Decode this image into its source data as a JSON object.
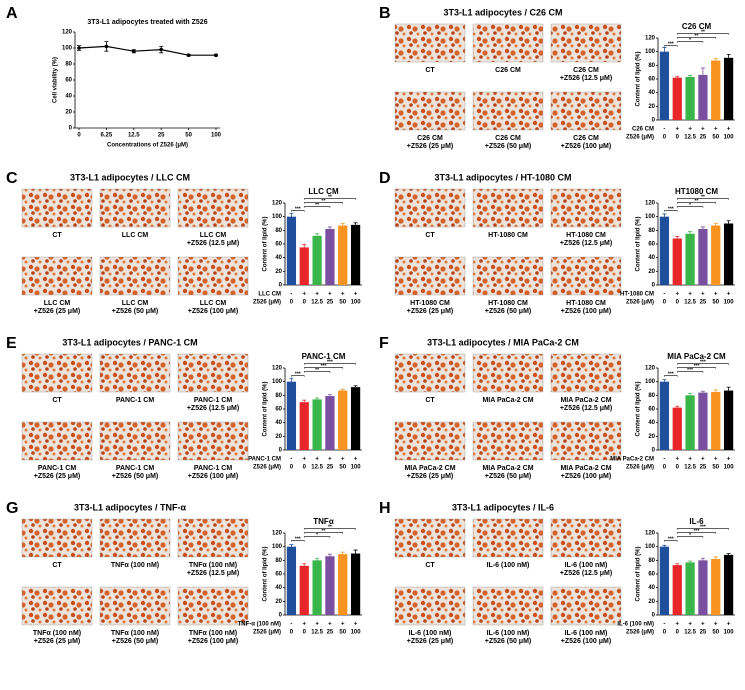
{
  "chart_data": [
    {
      "type": "line",
      "panel": "A",
      "title": "3T3-L1 adipocytes treated with Z526",
      "xlabel": "Concentrations of Z526 (μM)",
      "ylabel": "Cell viability (%)",
      "categories": [
        "0",
        "6.25",
        "12.5",
        "25",
        "50",
        "100"
      ],
      "values": [
        100,
        102,
        96,
        98,
        91,
        91
      ],
      "errors": [
        3,
        6,
        2,
        4,
        1,
        1
      ],
      "color": "#000000",
      "ylim": [
        0,
        120
      ],
      "yticks": [
        0,
        20,
        40,
        60,
        80,
        100,
        120
      ]
    },
    {
      "type": "bar",
      "panel": "B",
      "heading": "3T3-L1 adipocytes / C26 CM",
      "images": [
        [
          "CT"
        ],
        [
          "C26 CM"
        ],
        [
          "C26 CM",
          "+Z526 (12.5 μM)"
        ],
        [
          "C26 CM",
          "+Z526 (25 μM)"
        ],
        [
          "C26 CM",
          "+Z526 (50 μM)"
        ],
        [
          "C26 CM",
          "+Z526 (100 μM)"
        ]
      ],
      "title": "C26 CM",
      "ylabel": "Content of lipid (%)",
      "conditions": [
        {
          "label": "C26 CM",
          "values": [
            "-",
            "+",
            "+",
            "+",
            "+",
            "+"
          ]
        },
        {
          "label": "Z526 (μM)",
          "values": [
            "0",
            "0",
            "12.5",
            "25",
            "50",
            "100"
          ]
        }
      ],
      "values": [
        100,
        62,
        63,
        66,
        87,
        91
      ],
      "errors": [
        6,
        2,
        2,
        10,
        3,
        5
      ],
      "colors": [
        "#1f4e9c",
        "#e8262a",
        "#3ab54a",
        "#7b4fa0",
        "#f7931e",
        "#000000"
      ],
      "significance": [
        "***",
        "*",
        "**",
        "**"
      ],
      "ylim": [
        0,
        120
      ],
      "yticks": [
        0,
        20,
        40,
        60,
        80,
        100,
        120
      ]
    },
    {
      "type": "bar",
      "panel": "C",
      "heading": "3T3-L1 adipocytes / LLC CM",
      "images": [
        [
          "CT"
        ],
        [
          "LLC CM"
        ],
        [
          "LLC CM",
          "+Z526 (12.5 μM)"
        ],
        [
          "LLC CM",
          "+Z526 (25 μM)"
        ],
        [
          "LLC CM",
          "+Z526 (50 μM)"
        ],
        [
          "LLC CM",
          "+Z526 (100 μM)"
        ]
      ],
      "title": "LLC CM",
      "ylabel": "Content of lipid (%)",
      "conditions": [
        {
          "label": "LLC CM",
          "values": [
            "-",
            "+",
            "+",
            "+",
            "+",
            "+"
          ]
        },
        {
          "label": "Z526 (μM)",
          "values": [
            "0",
            "0",
            "12.5",
            "25",
            "50",
            "100"
          ]
        }
      ],
      "values": [
        100,
        55,
        72,
        82,
        87,
        88
      ],
      "errors": [
        5,
        4,
        3,
        3,
        3,
        3
      ],
      "colors": [
        "#1f4e9c",
        "#e8262a",
        "#3ab54a",
        "#7b4fa0",
        "#f7931e",
        "#000000"
      ],
      "significance": [
        "***",
        "**",
        "**",
        "**"
      ],
      "ylim": [
        0,
        120
      ],
      "yticks": [
        0,
        20,
        40,
        60,
        80,
        100,
        120
      ]
    },
    {
      "type": "bar",
      "panel": "D",
      "heading": "3T3-L1 adipocytes / HT-1080 CM",
      "images": [
        [
          "CT"
        ],
        [
          "HT-1080 CM"
        ],
        [
          "HT-1080 CM",
          "+Z526 (12.5 μM)"
        ],
        [
          "HT-1080 CM",
          "+Z526 (25 μM)"
        ],
        [
          "HT-1080 CM",
          "+Z526 (50 μM)"
        ],
        [
          "HT-1080 CM",
          "+Z526 (100 μM)"
        ]
      ],
      "title": "HT1080 CM",
      "ylabel": "Content of lipid (%)",
      "conditions": [
        {
          "label": "HT-1080 CM",
          "values": [
            "-",
            "+",
            "+",
            "+",
            "+",
            "+"
          ]
        },
        {
          "label": "Z526 (μM)",
          "values": [
            "0",
            "0",
            "12.5",
            "25",
            "50",
            "100"
          ]
        }
      ],
      "values": [
        100,
        68,
        75,
        82,
        87,
        90
      ],
      "errors": [
        4,
        3,
        3,
        3,
        3,
        4
      ],
      "colors": [
        "#1f4e9c",
        "#e8262a",
        "#3ab54a",
        "#7b4fa0",
        "#f7931e",
        "#000000"
      ],
      "significance": [
        "***",
        "*",
        "**",
        "**"
      ],
      "ylim": [
        0,
        120
      ],
      "yticks": [
        0,
        20,
        40,
        60,
        80,
        100,
        120
      ]
    },
    {
      "type": "bar",
      "panel": "E",
      "heading": "3T3-L1 adipocytes / PANC-1 CM",
      "images": [
        [
          "CT"
        ],
        [
          "PANC-1 CM"
        ],
        [
          "PANC-1 CM",
          "+Z526 (12.5 μM)"
        ],
        [
          "PANC-1 CM",
          "+Z526 (25 μM)"
        ],
        [
          "PANC-1 CM",
          "+Z526 (50 μM)"
        ],
        [
          "PANC-1 CM",
          "+Z526 (100 μM)"
        ]
      ],
      "title": "PANC-1 CM",
      "ylabel": "Content of lipid (%)",
      "conditions": [
        {
          "label": "PANC-1 CM",
          "values": [
            "-",
            "+",
            "+",
            "+",
            "+",
            "+"
          ]
        },
        {
          "label": "Z526 (μM)",
          "values": [
            "0",
            "0",
            "12.5",
            "25",
            "50",
            "100"
          ]
        }
      ],
      "values": [
        100,
        70,
        74,
        79,
        87,
        92
      ],
      "errors": [
        5,
        3,
        2,
        2,
        2,
        2
      ],
      "colors": [
        "#1f4e9c",
        "#e8262a",
        "#3ab54a",
        "#7b4fa0",
        "#f7931e",
        "#000000"
      ],
      "significance": [
        "***",
        "**",
        "***",
        "***"
      ],
      "ylim": [
        0,
        120
      ],
      "yticks": [
        0,
        20,
        40,
        60,
        80,
        100,
        120
      ]
    },
    {
      "type": "bar",
      "panel": "F",
      "heading": "3T3-L1 adipocytes / MIA PaCa-2 CM",
      "images": [
        [
          "CT"
        ],
        [
          "MIA PaCa-2 CM"
        ],
        [
          "MIA PaCa-2 CM",
          "+Z526 (12.5 μM)"
        ],
        [
          "MIA PaCa-2 CM",
          "+Z526 (25 μM)"
        ],
        [
          "MIA PaCa-2 CM",
          "+Z526 (50 μM)"
        ],
        [
          "MIA PaCa-2 CM",
          "+Z526 (100 μM)"
        ]
      ],
      "title": "MIA PaCa-2 CM",
      "ylabel": "Content of lipid (%)",
      "conditions": [
        {
          "label": "MIA PaCa-2 CM",
          "values": [
            "-",
            "+",
            "+",
            "+",
            "+",
            "+"
          ]
        },
        {
          "label": "Z526 (μM)",
          "values": [
            "0",
            "0",
            "12.5",
            "25",
            "50",
            "100"
          ]
        }
      ],
      "values": [
        100,
        62,
        80,
        84,
        85,
        87
      ],
      "errors": [
        3,
        2,
        3,
        2,
        3,
        5
      ],
      "colors": [
        "#1f4e9c",
        "#e8262a",
        "#3ab54a",
        "#7b4fa0",
        "#f7931e",
        "#000000"
      ],
      "significance": [
        "***",
        "***",
        "***",
        "***"
      ],
      "ylim": [
        0,
        120
      ],
      "yticks": [
        0,
        20,
        40,
        60,
        80,
        100,
        120
      ]
    },
    {
      "type": "bar",
      "panel": "G",
      "heading": "3T3-L1 adipocytes / TNF-α",
      "images": [
        [
          "CT"
        ],
        [
          "TNFα (100 nM)"
        ],
        [
          "TNFα (100 nM)",
          "+Z526 (12.5 μM)"
        ],
        [
          "TNFα (100 nM)",
          "+Z526 (25 μM)"
        ],
        [
          "TNFα (100 nM)",
          "+Z526 (50 μM)"
        ],
        [
          "TNFα (100 nM)",
          "+Z526 (100 μM)"
        ]
      ],
      "title": "TNFα",
      "ylabel": "Content of lipid (%)",
      "conditions": [
        {
          "label": "TNF-α (100 nM)",
          "values": [
            "-",
            "+",
            "+",
            "+",
            "+",
            "+"
          ]
        },
        {
          "label": "Z526 (μM)",
          "values": [
            "0",
            "0",
            "12.5",
            "25",
            "50",
            "100"
          ]
        }
      ],
      "values": [
        100,
        72,
        80,
        86,
        89,
        90
      ],
      "errors": [
        3,
        3,
        3,
        3,
        3,
        5
      ],
      "colors": [
        "#1f4e9c",
        "#e8262a",
        "#3ab54a",
        "#7b4fa0",
        "#f7931e",
        "#000000"
      ],
      "significance": [
        "***",
        "*",
        "**",
        "**"
      ],
      "ylim": [
        0,
        120
      ],
      "yticks": [
        0,
        20,
        40,
        60,
        80,
        100,
        120
      ]
    },
    {
      "type": "bar",
      "panel": "H",
      "heading": "3T3-L1 adipocytes / IL-6",
      "images": [
        [
          "CT"
        ],
        [
          "IL-6 (100 nM)"
        ],
        [
          "IL-6 (100 nM)",
          "+Z526 (12.5 μM)"
        ],
        [
          "IL-6 (100 nM)",
          "+Z526 (25 μM)"
        ],
        [
          "IL-6 (100 nM)",
          "+Z526 (50 μM)"
        ],
        [
          "IL-6 (100 nM)",
          "+Z526 (100 μM)"
        ]
      ],
      "title": "IL-6",
      "ylabel": "Content of lipid (%)",
      "conditions": [
        {
          "label": "IL-6 (100 nM)",
          "values": [
            "-",
            "+",
            "+",
            "+",
            "+",
            "+"
          ]
        },
        {
          "label": "Z526 (μM)",
          "values": [
            "0",
            "0",
            "12.5",
            "25",
            "50",
            "100"
          ]
        }
      ],
      "values": [
        100,
        73,
        77,
        80,
        82,
        88
      ],
      "errors": [
        2,
        2,
        2,
        3,
        3,
        2
      ],
      "colors": [
        "#1f4e9c",
        "#e8262a",
        "#3ab54a",
        "#7b4fa0",
        "#f7931e",
        "#000000"
      ],
      "significance": [
        "***",
        "*",
        "***",
        "***"
      ],
      "ylim": [
        0,
        120
      ],
      "yticks": [
        0,
        20,
        40,
        60,
        80,
        100,
        120
      ]
    }
  ]
}
